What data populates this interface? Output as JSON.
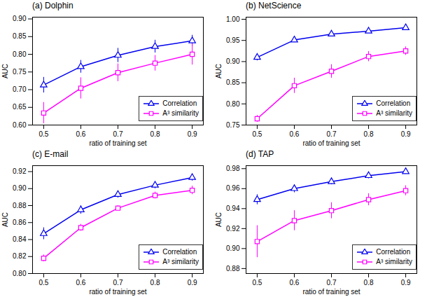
{
  "chart_data": [
    {
      "type": "line",
      "title": "(a) Dolphin",
      "xlabel": "ratio of training set",
      "ylabel": "AUC",
      "x": [
        0.5,
        0.6,
        0.7,
        0.8,
        0.9
      ],
      "xlim": [
        0.47,
        0.93
      ],
      "xticks": [
        0.5,
        0.6,
        0.7,
        0.8,
        0.9
      ],
      "ylim": [
        0.6,
        0.905
      ],
      "yticks": [
        {
          "value": 0.6,
          "label": "0.60"
        },
        0.65,
        {
          "value": 0.7,
          "label": "0.70"
        },
        0.75,
        {
          "value": 0.8,
          "label": "0.80"
        },
        0.85,
        {
          "value": 0.9,
          "label": "0.90"
        }
      ],
      "grid": false,
      "legend": "lower right",
      "series": [
        {
          "name": "Correlation",
          "color": "#0000EE",
          "marker": "triangle",
          "line_style": "solid",
          "values": [
            0.713,
            0.765,
            0.797,
            0.822,
            0.838
          ],
          "errors": [
            0.022,
            0.018,
            0.02,
            0.018,
            0.016
          ]
        },
        {
          "name": "A³ similarity",
          "color": "#FF00FF",
          "marker": "square",
          "line_style": "solid",
          "values": [
            0.634,
            0.704,
            0.748,
            0.775,
            0.8
          ],
          "errors": [
            0.03,
            0.03,
            0.025,
            0.022,
            0.03
          ]
        }
      ]
    },
    {
      "type": "line",
      "title": "(b) NetScience",
      "xlabel": "ratio of training set",
      "ylabel": "AUC",
      "x": [
        0.5,
        0.6,
        0.7,
        0.8,
        0.9
      ],
      "xlim": [
        0.47,
        0.93
      ],
      "xticks": [
        0.5,
        0.6,
        0.7,
        0.8,
        0.9
      ],
      "ylim": [
        0.75,
        1.005
      ],
      "yticks": [
        0.75,
        {
          "value": 0.8,
          "label": "0.80"
        },
        0.85,
        {
          "value": 0.9,
          "label": "0.90"
        },
        0.95,
        {
          "value": 1.0,
          "label": "1.00"
        }
      ],
      "grid": false,
      "legend": "lower right",
      "series": [
        {
          "name": "Correlation",
          "color": "#0000EE",
          "marker": "triangle",
          "line_style": "solid",
          "values": [
            0.91,
            0.951,
            0.965,
            0.972,
            0.98
          ],
          "errors": [
            0.008,
            0.005,
            0.004,
            0.004,
            0.003
          ]
        },
        {
          "name": "A³ similarity",
          "color": "#FF00FF",
          "marker": "square",
          "line_style": "solid",
          "values": [
            0.765,
            0.843,
            0.877,
            0.912,
            0.925
          ],
          "errors": [
            0.008,
            0.018,
            0.016,
            0.012,
            0.01
          ]
        }
      ]
    },
    {
      "type": "line",
      "title": "(c) E-mail",
      "xlabel": "ratio of training set",
      "ylabel": "AUC",
      "x": [
        0.5,
        0.6,
        0.7,
        0.8,
        0.9
      ],
      "xlim": [
        0.47,
        0.93
      ],
      "xticks": [
        0.5,
        0.6,
        0.7,
        0.8,
        0.9
      ],
      "ylim": [
        0.8,
        0.927
      ],
      "yticks": [
        {
          "value": 0.8,
          "label": "0.80"
        },
        0.82,
        0.84,
        0.86,
        0.88,
        {
          "value": 0.9,
          "label": "0.90"
        },
        0.92
      ],
      "grid": false,
      "legend": "lower right",
      "series": [
        {
          "name": "Correlation",
          "color": "#0000EE",
          "marker": "triangle",
          "line_style": "solid",
          "values": [
            0.847,
            0.875,
            0.893,
            0.904,
            0.913
          ],
          "errors": [
            0.007,
            0.005,
            0.004,
            0.004,
            0.004
          ]
        },
        {
          "name": "A³ similarity",
          "color": "#FF00FF",
          "marker": "square",
          "line_style": "solid",
          "values": [
            0.818,
            0.854,
            0.877,
            0.892,
            0.898
          ],
          "errors": [
            0.004,
            0.004,
            0.003,
            0.004,
            0.005
          ]
        }
      ]
    },
    {
      "type": "line",
      "title": "(d) TAP",
      "xlabel": "ratio of training set",
      "ylabel": "AUC",
      "x": [
        0.5,
        0.6,
        0.7,
        0.8,
        0.9
      ],
      "xlim": [
        0.47,
        0.93
      ],
      "xticks": [
        0.5,
        0.6,
        0.7,
        0.8,
        0.9
      ],
      "ylim": [
        0.875,
        0.983
      ],
      "yticks": [
        0.88,
        {
          "value": 0.9,
          "label": "0.90"
        },
        0.92,
        0.94,
        0.96,
        0.98
      ],
      "grid": false,
      "legend": "lower right",
      "series": [
        {
          "name": "Correlation",
          "color": "#0000EE",
          "marker": "triangle",
          "line_style": "solid",
          "values": [
            0.949,
            0.96,
            0.967,
            0.973,
            0.977
          ],
          "errors": [
            0.005,
            0.004,
            0.003,
            0.003,
            0.002
          ]
        },
        {
          "name": "A³ similarity",
          "color": "#FF00FF",
          "marker": "square",
          "line_style": "solid",
          "values": [
            0.907,
            0.928,
            0.938,
            0.949,
            0.958
          ],
          "errors": [
            0.016,
            0.01,
            0.008,
            0.006,
            0.005
          ]
        }
      ]
    }
  ]
}
